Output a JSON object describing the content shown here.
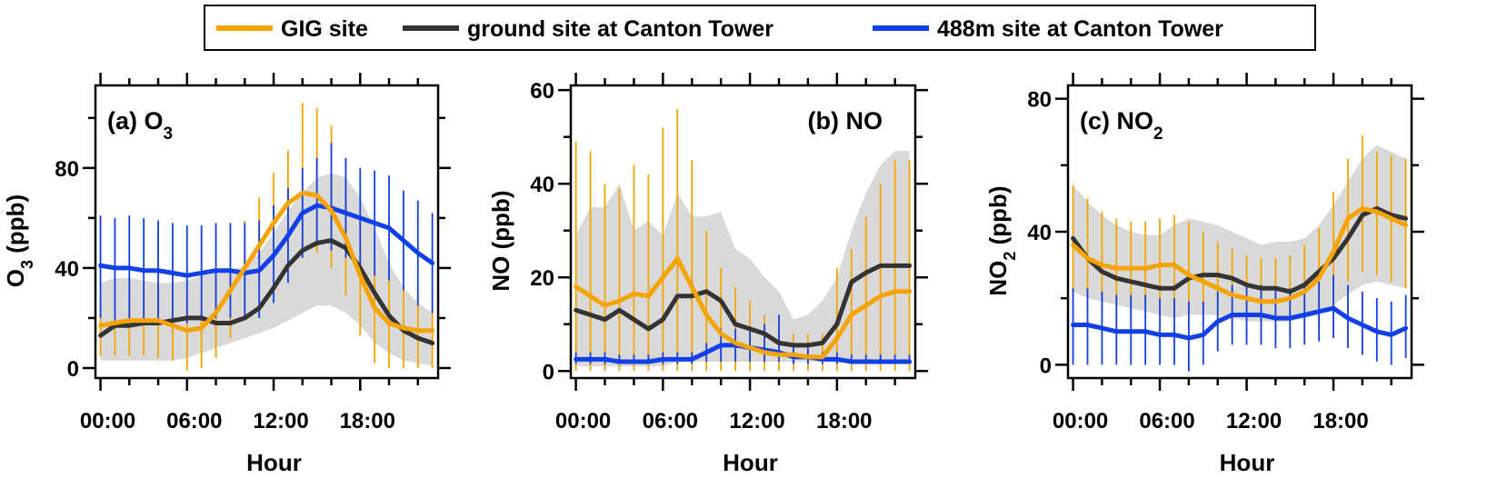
{
  "legend": [
    {
      "label": "GIG site",
      "color": "#F5A300"
    },
    {
      "label": "ground site at Canton Tower",
      "color": "#333333"
    },
    {
      "label": "488m site at Canton Tower",
      "color": "#1140E8"
    }
  ],
  "xlabel": "Hour",
  "xticks": [
    "00:00",
    "06:00",
    "12:00",
    "18:00"
  ],
  "colors": {
    "gig": "#F5A300",
    "ground": "#333333",
    "tower": "#1140E8",
    "band": "#D9D9D9"
  },
  "chart_data": [
    {
      "type": "line",
      "panel_label": "(a)  O",
      "panel_label_sub": "3",
      "ylabel": "O",
      "ylabel_sub": "3",
      "ylabel_unit": " (ppb)",
      "ylim": [
        -4,
        113
      ],
      "yticks": [
        0,
        40,
        80
      ],
      "yticks_labels": [
        "0",
        "40",
        "80"
      ],
      "x": [
        0,
        1,
        2,
        3,
        4,
        5,
        6,
        7,
        8,
        9,
        10,
        11,
        12,
        13,
        14,
        15,
        16,
        17,
        18,
        19,
        20,
        21,
        22,
        23
      ],
      "series": [
        {
          "name": "ground site at Canton Tower",
          "key": "ground",
          "values": [
            13,
            17,
            17,
            18,
            18,
            19,
            20,
            20,
            18,
            18,
            20,
            24,
            32,
            41,
            47,
            50,
            51,
            48,
            40,
            30,
            21,
            15,
            12,
            10
          ],
          "band_lo": [
            3,
            3,
            3,
            3,
            3,
            3,
            4,
            6,
            8,
            10,
            12,
            14,
            16,
            19,
            22,
            25,
            25,
            22,
            17,
            10,
            6,
            3,
            2,
            1
          ],
          "band_hi": [
            34,
            36,
            36,
            35,
            34,
            34,
            35,
            37,
            38,
            39,
            41,
            46,
            54,
            63,
            70,
            76,
            78,
            76,
            68,
            56,
            42,
            32,
            26,
            22
          ]
        },
        {
          "name": "GIG site",
          "key": "gig",
          "values": [
            17,
            18,
            19,
            19,
            19,
            17,
            15,
            16,
            22,
            31,
            40,
            49,
            58,
            66,
            70,
            69,
            63,
            52,
            37,
            24,
            18,
            16,
            15,
            15
          ],
          "err_lo": [
            5,
            5,
            5,
            5,
            4,
            3,
            -1,
            0,
            4,
            12,
            21,
            30,
            38,
            45,
            48,
            46,
            40,
            29,
            13,
            2,
            0,
            0,
            0,
            0
          ],
          "err_hi": [
            29,
            31,
            32,
            33,
            34,
            31,
            31,
            32,
            40,
            50,
            59,
            68,
            78,
            87,
            106,
            104,
            97,
            76,
            61,
            46,
            36,
            32,
            30,
            30
          ]
        },
        {
          "name": "488m site at Canton Tower",
          "key": "tower",
          "values": [
            41,
            40,
            40,
            39,
            39,
            38,
            37,
            38,
            39,
            39,
            38,
            39,
            45,
            53,
            62,
            65,
            64,
            62,
            60,
            58,
            56,
            51,
            46,
            42
          ],
          "err_lo": [
            20,
            19,
            19,
            19,
            19,
            18,
            18,
            19,
            20,
            20,
            20,
            20,
            26,
            34,
            44,
            49,
            47,
            44,
            40,
            37,
            35,
            31,
            25,
            22
          ],
          "err_hi": [
            61,
            60,
            61,
            60,
            59,
            58,
            57,
            57,
            58,
            58,
            58,
            59,
            65,
            72,
            80,
            84,
            90,
            84,
            80,
            79,
            77,
            71,
            67,
            62
          ]
        }
      ]
    },
    {
      "type": "line",
      "panel_label": "(b) NO",
      "panel_label_sub": "",
      "ylabel": "NO",
      "ylabel_sub": "",
      "ylabel_unit": " (ppb)",
      "ylim": [
        -1.5,
        61
      ],
      "yticks": [
        0,
        20,
        40,
        60
      ],
      "yticks_labels": [
        "0",
        "20",
        "40",
        "60"
      ],
      "x": [
        0,
        1,
        2,
        3,
        4,
        5,
        6,
        7,
        8,
        9,
        10,
        11,
        12,
        13,
        14,
        15,
        16,
        17,
        18,
        19,
        20,
        21,
        22,
        23
      ],
      "series": [
        {
          "name": "ground site at Canton Tower",
          "key": "ground",
          "values": [
            13,
            12,
            11,
            13,
            11,
            9,
            11,
            16,
            16,
            17,
            15,
            10,
            9,
            8,
            6,
            5.5,
            5.5,
            6,
            10,
            19,
            21,
            22.5,
            22.5,
            22.5
          ],
          "band_lo": [
            1,
            1,
            1,
            1,
            1,
            1,
            1,
            2,
            2,
            2,
            2,
            2,
            2,
            2,
            2,
            2,
            2,
            2,
            2,
            2,
            2,
            2,
            2,
            2
          ],
          "band_hi": [
            29,
            35,
            35,
            40,
            30,
            32,
            29,
            38,
            33,
            33,
            34,
            26,
            24,
            20,
            17,
            11,
            12,
            15,
            20,
            30,
            38,
            44,
            47,
            47
          ]
        },
        {
          "name": "GIG site",
          "key": "gig",
          "values": [
            18,
            16,
            14,
            15,
            16.5,
            16,
            20,
            24,
            18,
            12,
            8,
            6,
            5,
            4,
            3.5,
            3.5,
            3,
            3,
            7,
            12,
            14,
            16,
            17,
            17
          ],
          "err_lo": [
            0,
            0,
            0,
            0,
            0,
            0,
            0,
            0,
            0,
            0,
            0,
            0,
            0,
            0,
            0,
            0,
            0,
            0,
            0,
            0,
            0,
            0,
            0,
            0
          ],
          "err_hi": [
            49,
            47,
            40,
            39,
            44,
            42,
            52,
            56,
            45,
            30,
            22,
            18,
            15,
            12,
            9,
            8,
            8,
            8,
            22,
            26,
            33,
            40,
            45,
            45
          ]
        },
        {
          "name": "488m site at Canton Tower",
          "key": "tower",
          "values": [
            2.5,
            2.5,
            2.5,
            2,
            2,
            2,
            2.5,
            2.5,
            2.5,
            4,
            5.5,
            5.5,
            5,
            4.5,
            4,
            3,
            3,
            2.5,
            2.5,
            2,
            2,
            2,
            2,
            2
          ],
          "err_lo": [
            1.5,
            1.5,
            1.5,
            1.5,
            1.5,
            1.5,
            1.5,
            1.5,
            1.5,
            2,
            2,
            2,
            2,
            2,
            2,
            1.5,
            1.5,
            1.5,
            1.5,
            1.5,
            1.5,
            1.5,
            1.5,
            1.5
          ],
          "err_hi": [
            4,
            4,
            4,
            3.5,
            3.5,
            3.5,
            4,
            4,
            4,
            6,
            9,
            9,
            9,
            10,
            12,
            5,
            5,
            4,
            4,
            3.5,
            3.5,
            3.5,
            3.5,
            3.5
          ]
        }
      ]
    },
    {
      "type": "line",
      "panel_label": "(c) NO",
      "panel_label_sub": "2",
      "ylabel": "NO",
      "ylabel_sub": "2",
      "ylabel_unit": " (ppb)",
      "ylim": [
        -4,
        84
      ],
      "yticks": [
        0,
        40,
        80
      ],
      "yticks_labels": [
        "0",
        "40",
        "80"
      ],
      "x": [
        0,
        1,
        2,
        3,
        4,
        5,
        6,
        7,
        8,
        9,
        10,
        11,
        12,
        13,
        14,
        15,
        16,
        17,
        18,
        19,
        20,
        21,
        22,
        23
      ],
      "series": [
        {
          "name": "ground site at Canton Tower",
          "key": "ground",
          "values": [
            38,
            32,
            28,
            26,
            25,
            24,
            23,
            23,
            26,
            27,
            27,
            26,
            24,
            23,
            23,
            22,
            24,
            28,
            32,
            38,
            45,
            47,
            45,
            44
          ],
          "band_lo": [
            22,
            20,
            19,
            18,
            17,
            16,
            15,
            14,
            15,
            15,
            15,
            14,
            13,
            13,
            13,
            13,
            14,
            15,
            18,
            21,
            24,
            25,
            24,
            23
          ],
          "band_hi": [
            54,
            49,
            45,
            42,
            40,
            39,
            39,
            42,
            44,
            43,
            42,
            40,
            38,
            36,
            37,
            37,
            38,
            42,
            48,
            55,
            62,
            66,
            64,
            62
          ]
        },
        {
          "name": "GIG site",
          "key": "gig",
          "values": [
            36,
            32,
            30,
            29,
            29,
            29,
            30,
            30,
            27,
            25,
            23,
            21,
            20,
            19,
            19,
            20,
            22,
            26,
            34,
            44,
            47,
            46,
            44,
            42
          ],
          "err_lo": [
            17,
            15,
            15,
            15,
            15,
            15,
            16,
            16,
            14,
            13,
            11,
            9,
            8,
            7,
            7,
            8,
            9,
            11,
            17,
            25,
            28,
            27,
            25,
            23
          ],
          "err_hi": [
            54,
            50,
            46,
            44,
            43,
            43,
            44,
            45,
            43,
            40,
            37,
            35,
            33,
            32,
            32,
            33,
            36,
            41,
            52,
            62,
            69,
            64,
            63,
            62
          ]
        },
        {
          "name": "488m site at Canton Tower",
          "key": "tower",
          "values": [
            12,
            12,
            11,
            10,
            10,
            10,
            9,
            9,
            8,
            9,
            13,
            15,
            15,
            15,
            14,
            14,
            15,
            16,
            17,
            14,
            12,
            10,
            9,
            11
          ],
          "err_lo": [
            0,
            0,
            0,
            0,
            0,
            0,
            0,
            0,
            -2,
            0,
            4,
            6,
            6,
            6,
            5,
            5,
            6,
            7,
            8,
            5,
            3,
            1,
            0,
            2
          ],
          "err_hi": [
            23,
            23,
            22,
            21,
            21,
            21,
            20,
            20,
            19,
            19,
            22,
            24,
            24,
            24,
            23,
            23,
            24,
            25,
            27,
            24,
            22,
            20,
            19,
            21
          ]
        }
      ]
    }
  ]
}
